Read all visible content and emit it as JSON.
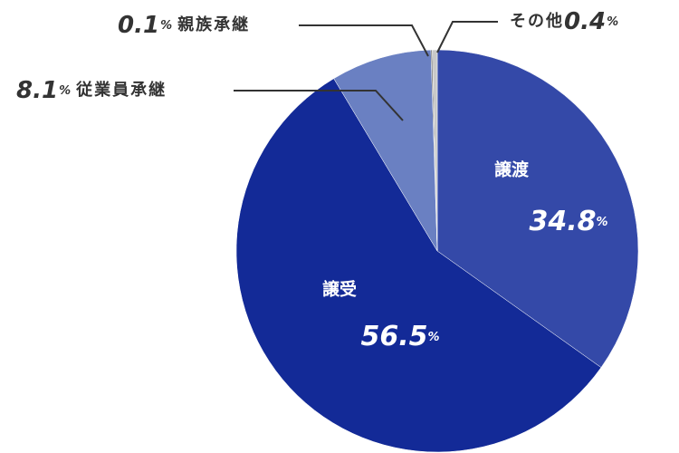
{
  "chart_data": {
    "type": "pie",
    "categories": [
      "譲渡",
      "譲受",
      "従業員承継",
      "親族承継",
      "その他"
    ],
    "values": [
      34.8,
      56.5,
      8.1,
      0.1,
      0.4
    ],
    "unit": "%",
    "colors": [
      "#3449a8",
      "#132a97",
      "#6a80c2",
      "#555555",
      "#c8c8c8"
    ]
  }
}
